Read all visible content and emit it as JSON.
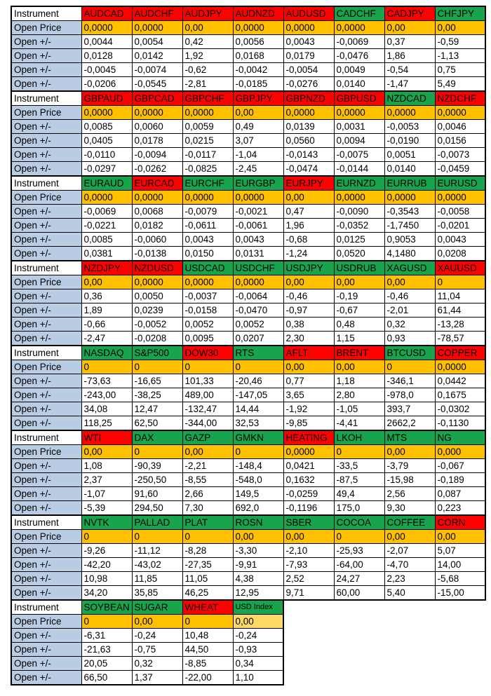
{
  "labels": {
    "instrument": "Instrument",
    "open_price": "Open Price",
    "open_change": "Open +/-"
  },
  "colors": {
    "header_red": "#FF0000",
    "header_green": "#18A44C",
    "price_orange": "#FFC000",
    "price_light": "#FFD966",
    "label_blue": "#B8CCE4",
    "border": "#000000"
  },
  "blocks": [
    {
      "instruments": [
        {
          "name": "AUDCAD",
          "header": "red",
          "open_price": "0,0000",
          "changes": [
            "0,0044",
            "0,0128",
            "-0,0045",
            "-0,0206"
          ]
        },
        {
          "name": "AUDCHF",
          "header": "red",
          "open_price": "0,0000",
          "changes": [
            "0,0054",
            "0,0142",
            "-0,0074",
            "-0,0545"
          ]
        },
        {
          "name": "AUDJPY",
          "header": "red",
          "open_price": "0,00",
          "changes": [
            "0,42",
            "1,92",
            "-0,62",
            "-2,81"
          ]
        },
        {
          "name": "AUDNZD",
          "header": "red",
          "open_price": "0,0000",
          "changes": [
            "0,0056",
            "0,0168",
            "-0,0042",
            "-0,0185"
          ]
        },
        {
          "name": "AUDUSD",
          "header": "red",
          "open_price": "0,0000",
          "changes": [
            "0,0043",
            "0,0179",
            "-0,0054",
            "-0,0276"
          ]
        },
        {
          "name": "CADCHF",
          "header": "green",
          "open_price": "0,0000",
          "changes": [
            "-0,0069",
            "-0,0476",
            "0,0049",
            "0,0140"
          ]
        },
        {
          "name": "CADJPY",
          "header": "red",
          "open_price": "0,00",
          "changes": [
            "0,37",
            "1,86",
            "-0,54",
            "-1,47"
          ]
        },
        {
          "name": "CHFJPY",
          "header": "green",
          "open_price": "0,00",
          "changes": [
            "-0,59",
            "-1,13",
            "0,75",
            "5,49"
          ]
        }
      ]
    },
    {
      "instruments": [
        {
          "name": "GBPAUD",
          "header": "red",
          "open_price": "0,0000",
          "changes": [
            "0,0085",
            "0,0405",
            "-0,0110",
            "-0,0297"
          ]
        },
        {
          "name": "GBPCAD",
          "header": "red",
          "open_price": "0,0000",
          "changes": [
            "0,0060",
            "0,0178",
            "-0,0094",
            "-0,0262"
          ]
        },
        {
          "name": "GBPCHF",
          "header": "red",
          "open_price": "0,0000",
          "changes": [
            "0,0059",
            "0,0215",
            "-0,0117",
            "-0,0825"
          ]
        },
        {
          "name": "GBPJPY",
          "header": "red",
          "open_price": "0,00",
          "changes": [
            "0,49",
            "3,07",
            "-1,04",
            "-2,45"
          ]
        },
        {
          "name": "GBPNZD",
          "header": "red",
          "open_price": "0,0000",
          "changes": [
            "0,0139",
            "0,0560",
            "-0,0143",
            "-0,0474"
          ]
        },
        {
          "name": "GBPUSD",
          "header": "red",
          "open_price": "0,0000",
          "changes": [
            "0,0031",
            "0,0094",
            "-0,0075",
            "-0,0144"
          ]
        },
        {
          "name": "NZDCAD",
          "header": "green",
          "open_price": "0,0000",
          "changes": [
            "-0,0053",
            "-0,0190",
            "0,0051",
            "0,0140"
          ]
        },
        {
          "name": "NZDCHF",
          "header": "red",
          "open_price": "0,0000",
          "changes": [
            "0,0046",
            "0,0156",
            "-0,0073",
            "-0,0459"
          ]
        }
      ]
    },
    {
      "instruments": [
        {
          "name": "EURAUD",
          "header": "green",
          "open_price": "0,0000",
          "changes": [
            "-0,0069",
            "-0,0221",
            "0,0085",
            "0,0381"
          ]
        },
        {
          "name": "EURCAD",
          "header": "red",
          "open_price": "0,0000",
          "changes": [
            "0,0068",
            "0,0182",
            "-0,0060",
            "-0,0138"
          ]
        },
        {
          "name": "EURCHF",
          "header": "green",
          "open_price": "0,0000",
          "changes": [
            "-0,0079",
            "-0,0611",
            "0,0043",
            "0,0150"
          ]
        },
        {
          "name": "EURGBP",
          "header": "green",
          "open_price": "0,0000",
          "changes": [
            "-0,0021",
            "-0,0061",
            "0,0043",
            "0,0131"
          ]
        },
        {
          "name": "EURJPY",
          "header": "red",
          "open_price": "0,00",
          "changes": [
            "0,47",
            "1,96",
            "-0,68",
            "-1,24"
          ]
        },
        {
          "name": "EURNZD",
          "header": "green",
          "open_price": "0,0000",
          "changes": [
            "-0,0090",
            "-0,0352",
            "0,0125",
            "0,0520"
          ]
        },
        {
          "name": "EURRUB",
          "header": "green",
          "open_price": "0,0000",
          "changes": [
            "-0,3543",
            "-1,7450",
            "0,9053",
            "4,1480"
          ]
        },
        {
          "name": "EURUSD",
          "header": "green",
          "open_price": "0,0000",
          "changes": [
            "-0,0058",
            "-0,0201",
            "0,0043",
            "0,0208"
          ]
        }
      ]
    },
    {
      "instruments": [
        {
          "name": "NZDJPY",
          "header": "red",
          "open_price": "0,00",
          "changes": [
            "0,36",
            "1,89",
            "-0,66",
            "-2,47"
          ]
        },
        {
          "name": "NZDUSD",
          "header": "red",
          "open_price": "0,0000",
          "changes": [
            "0,0050",
            "0,0239",
            "-0,0052",
            "-0,0208"
          ]
        },
        {
          "name": "USDCAD",
          "header": "green",
          "open_price": "0,0000",
          "changes": [
            "-0,0037",
            "-0,0158",
            "0,0052",
            "0,0095"
          ]
        },
        {
          "name": "USDCHF",
          "header": "green",
          "open_price": "0,0000",
          "changes": [
            "-0,0064",
            "-0,0470",
            "0,0052",
            "0,0207"
          ]
        },
        {
          "name": "USDJPY",
          "header": "green",
          "open_price": "0,00",
          "changes": [
            "-0,46",
            "-0,97",
            "0,38",
            "2,30"
          ]
        },
        {
          "name": "USDRUB",
          "header": "green",
          "open_price": "0,00",
          "changes": [
            "-0,19",
            "-0,67",
            "0,48",
            "1,15"
          ]
        },
        {
          "name": "XAGUSD",
          "header": "green",
          "open_price": "0,00",
          "changes": [
            "-0,46",
            "-2,01",
            "0,32",
            "0,93"
          ]
        },
        {
          "name": "XAUUSD",
          "header": "red",
          "open_price": "0",
          "changes": [
            "11,04",
            "61,44",
            "-13,28",
            "-78,57"
          ]
        }
      ]
    },
    {
      "instruments": [
        {
          "name": "NASDAQ",
          "header": "green",
          "open_price": "0",
          "changes": [
            "-73,63",
            "-243,00",
            "34,08",
            "118,25"
          ]
        },
        {
          "name": "S&P500",
          "header": "green",
          "open_price": "0",
          "changes": [
            "-16,65",
            "-38,25",
            "12,47",
            "62,50"
          ]
        },
        {
          "name": "DOW30",
          "header": "red",
          "open_price": "0",
          "changes": [
            "101,33",
            "489,00",
            "-132,47",
            "-344,00"
          ]
        },
        {
          "name": "RTS",
          "header": "green",
          "open_price": "0",
          "changes": [
            "-20,46",
            "-147,05",
            "14,44",
            "32,53"
          ]
        },
        {
          "name": "AFLT",
          "header": "red",
          "open_price": "0,00",
          "changes": [
            "0,77",
            "3,65",
            "-1,92",
            "-9,85"
          ]
        },
        {
          "name": "BRENT",
          "header": "red",
          "open_price": "0,00",
          "changes": [
            "1,18",
            "2,80",
            "-1,05",
            "-4,41"
          ]
        },
        {
          "name": "BTCUSD",
          "header": "green",
          "open_price": "0",
          "changes": [
            "-346,1",
            "-978,0",
            "393,7",
            "2662,2"
          ]
        },
        {
          "name": "COPPER",
          "header": "red",
          "open_price": "0,0000",
          "changes": [
            "0,0442",
            "0,1675",
            "-0,0302",
            "-0,1130"
          ]
        }
      ]
    },
    {
      "instruments": [
        {
          "name": "WTI",
          "header": "red",
          "open_price": "0,00",
          "changes": [
            "1,08",
            "2,37",
            "-1,07",
            "-5,39"
          ]
        },
        {
          "name": "DAX",
          "header": "green",
          "open_price": "0",
          "changes": [
            "-90,39",
            "-250,50",
            "91,60",
            "294,50"
          ]
        },
        {
          "name": "GAZP",
          "header": "green",
          "open_price": "0,00",
          "changes": [
            "-2,21",
            "-8,55",
            "2,66",
            "7,30"
          ]
        },
        {
          "name": "GMKN",
          "header": "green",
          "open_price": "0",
          "changes": [
            "-148,4",
            "-548,0",
            "149,5",
            "692,0"
          ]
        },
        {
          "name": "HEATING",
          "header": "red",
          "open_price": "0,0000",
          "changes": [
            "0,0421",
            "0,1632",
            "-0,0259",
            "-0,1196"
          ]
        },
        {
          "name": "LKOH",
          "header": "green",
          "open_price": "0",
          "changes": [
            "-33,5",
            "-87,5",
            "49,4",
            "175,0"
          ]
        },
        {
          "name": "MTS",
          "header": "green",
          "open_price": "0,00",
          "changes": [
            "-3,79",
            "-15,98",
            "2,56",
            "9,30"
          ]
        },
        {
          "name": "NG",
          "header": "green",
          "open_price": "0,000",
          "changes": [
            "-0,067",
            "-0,189",
            "0,087",
            "0,223"
          ]
        }
      ]
    },
    {
      "instruments": [
        {
          "name": "NVTK",
          "header": "green",
          "open_price": "0",
          "changes": [
            "-9,26",
            "-42,20",
            "10,98",
            "34,20"
          ]
        },
        {
          "name": "PALLAD",
          "header": "green",
          "open_price": "0",
          "changes": [
            "-11,12",
            "-43,02",
            "11,85",
            "35,85"
          ]
        },
        {
          "name": "PLAT",
          "header": "green",
          "open_price": "0",
          "changes": [
            "-8,28",
            "-27,35",
            "11,05",
            "46,25"
          ]
        },
        {
          "name": "ROSN",
          "header": "green",
          "open_price": "0,00",
          "changes": [
            "-3,30",
            "-9,91",
            "4,38",
            "12,95"
          ]
        },
        {
          "name": "SBER",
          "header": "green",
          "open_price": "0,00",
          "changes": [
            "-2,10",
            "-7,93",
            "2,52",
            "9,71"
          ]
        },
        {
          "name": "COCOA",
          "header": "green",
          "open_price": "0",
          "changes": [
            "-25,93",
            "-64,00",
            "24,27",
            "60,00"
          ]
        },
        {
          "name": "COFFEE",
          "header": "green",
          "open_price": "0,00",
          "changes": [
            "-2,07",
            "-4,70",
            "2,23",
            "5,40"
          ]
        },
        {
          "name": "CORN",
          "header": "red",
          "open_price": "0,00",
          "changes": [
            "5,07",
            "14,00",
            "-5,68",
            "-15,00"
          ]
        }
      ]
    },
    {
      "instruments": [
        {
          "name": "SOYBEAN",
          "header": "green",
          "open_price": "0",
          "changes": [
            "-6,31",
            "-21,63",
            "20,05",
            "66,50"
          ]
        },
        {
          "name": "SUGAR",
          "header": "green",
          "open_price": "0,00",
          "changes": [
            "-0,24",
            "-0,75",
            "0,32",
            "1,37"
          ]
        },
        {
          "name": "WHEAT",
          "header": "red",
          "open_price": "0",
          "changes": [
            "10,48",
            "44,50",
            "-8,85",
            "-22,00"
          ]
        },
        {
          "name": "USD Index",
          "header": "green",
          "open_price": "0,00",
          "changes": [
            "-0,24",
            "-0,93",
            "0,34",
            "1,10"
          ],
          "small_header": true,
          "price_light": true
        }
      ]
    }
  ]
}
